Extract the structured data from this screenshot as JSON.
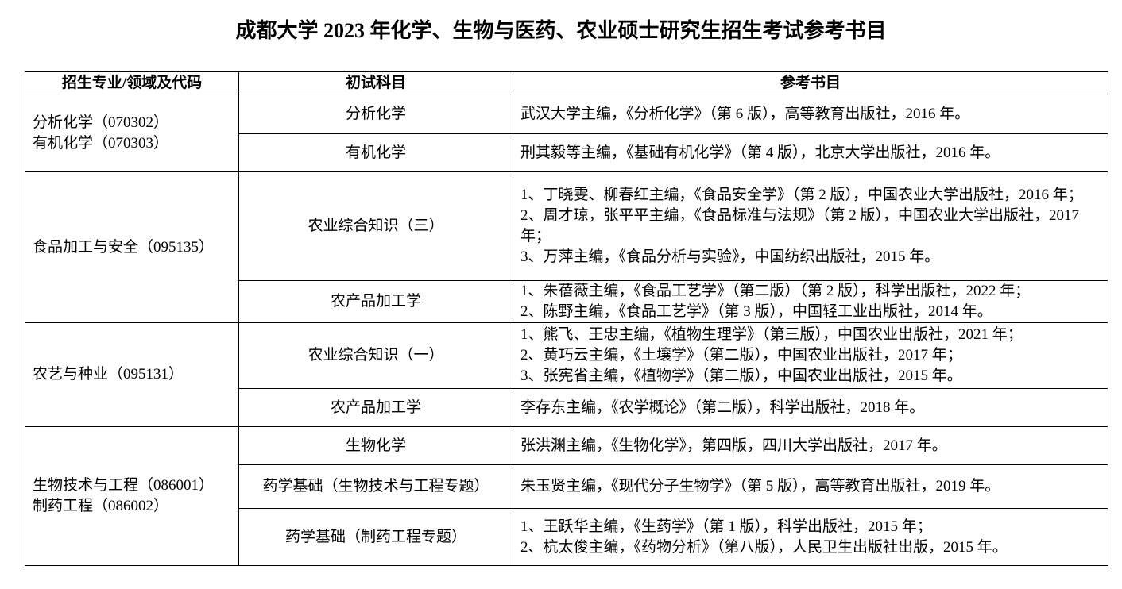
{
  "title": "成都大学 2023 年化学、生物与医药、农业硕士研究生招生考试参考书目",
  "headers": [
    "招生专业/领域及代码",
    "初试科目",
    "参考书目"
  ],
  "groups": [
    {
      "majors": [
        "分析化学（070302）",
        "有机化学（070303）"
      ],
      "subjects": [
        {
          "name": "分析化学",
          "books": [
            "武汉大学主编，《分析化学》（第 6 版），高等教育出版社，2016 年。"
          ]
        },
        {
          "name": "有机化学",
          "books": [
            "刑其毅等主编，《基础有机化学》（第 4 版），北京大学出版社，2016 年。"
          ]
        }
      ]
    },
    {
      "majors": [
        "食品加工与安全（095135）"
      ],
      "subjects": [
        {
          "name": "农业综合知识（三）",
          "books": [
            "1、丁晓雯、柳春红主编，《食品安全学》（第 2 版），中国农业大学出版社，2016 年；",
            "2、周才琼，张平平主编，《食品标准与法规》（第 2 版），中国农业大学出版社，2017 年；",
            "3、万萍主编，《食品分析与实验》，中国纺织出版社，2015 年。"
          ]
        },
        {
          "name": "农产品加工学",
          "books": [
            "1、朱蓓薇主编，《食品工艺学》（第二版）（第 2 版），科学出版社，2022 年；",
            "2、陈野主编，《食品工艺学》（第 3 版），中国轻工业出版社，2014 年。"
          ]
        }
      ]
    },
    {
      "majors": [
        "农艺与种业（095131）"
      ],
      "subjects": [
        {
          "name": "农业综合知识（一）",
          "books": [
            "1、熊飞、王忠主编，《植物生理学》（第三版），中国农业出版社，2021 年；",
            "2、黄巧云主编，《土壤学》（第二版），中国农业出版社，2017 年；",
            "3、张宪省主编，《植物学》（第二版），中国农业出版社，2015 年。"
          ]
        },
        {
          "name": "农产品加工学",
          "books": [
            "李存东主编，《农学概论》（第二版），科学出版社，2018 年。"
          ]
        }
      ]
    },
    {
      "majors": [
        "生物技术与工程（086001）",
        "制药工程（086002）"
      ],
      "subjects": [
        {
          "name": "生物化学",
          "books": [
            "张洪渊主编，《生物化学》，第四版，四川大学出版社，2017 年。"
          ]
        },
        {
          "name": "药学基础（生物技术与工程专题）",
          "books": [
            "朱玉贤主编，《现代分子生物学》（第 5 版），高等教育出版社，2019 年。"
          ]
        },
        {
          "name": "药学基础（制药工程专题）",
          "books": [
            "1、王跃华主编，《生药学》（第 1 版），科学出版社，2015 年；",
            "2、杭太俊主编，《药物分析》（第八版），人民卫生出版社出版，2015 年。"
          ]
        }
      ]
    }
  ]
}
